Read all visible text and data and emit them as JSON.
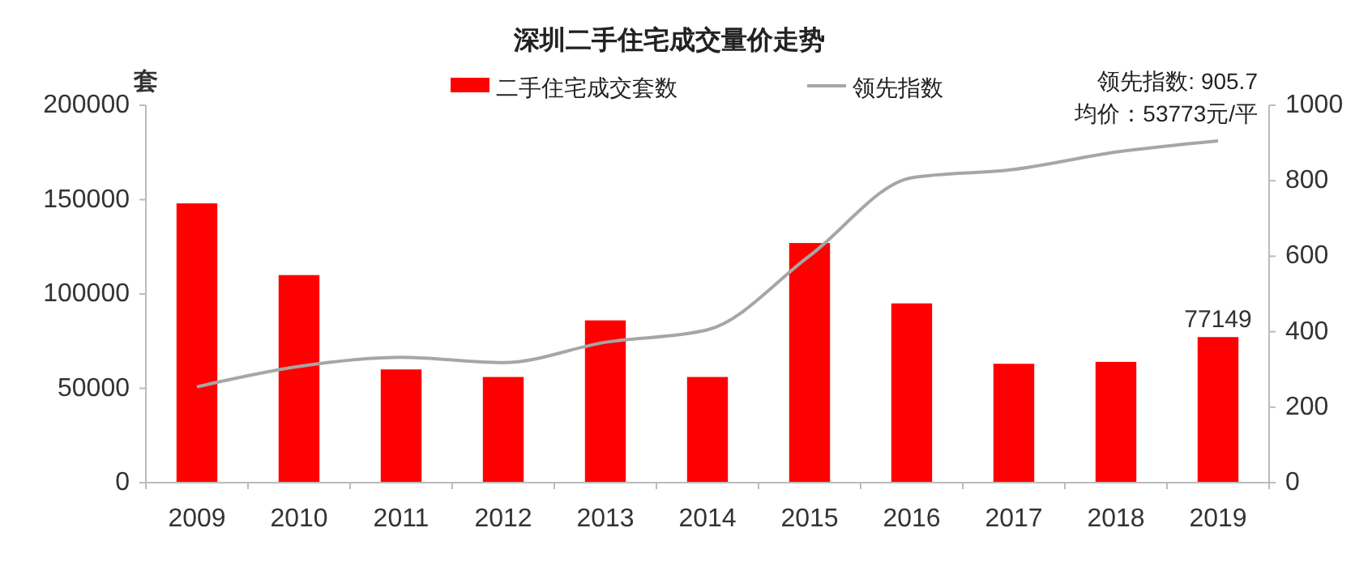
{
  "chart_data": {
    "type": "bar",
    "title": "深圳二手住宅成交量价走势",
    "ylabel": "套",
    "categories": [
      "2009",
      "2010",
      "2011",
      "2012",
      "2013",
      "2014",
      "2015",
      "2016",
      "2017",
      "2018",
      "2019"
    ],
    "series": [
      {
        "name": "二手住宅成交套数",
        "type": "bar",
        "color": "#ff0000",
        "values": [
          148000,
          110000,
          60000,
          56000,
          86000,
          56000,
          127000,
          95000,
          63000,
          64000,
          77149
        ],
        "value_labels": [
          null,
          null,
          null,
          null,
          null,
          null,
          null,
          null,
          null,
          null,
          "77149"
        ]
      },
      {
        "name": "领先指数",
        "type": "line",
        "axis": "y2",
        "color": "#a6a6a6",
        "values": [
          254,
          308,
          332,
          318,
          372,
          405,
          601,
          808,
          830,
          876,
          905.7
        ]
      }
    ],
    "ylim": [
      0,
      200000
    ],
    "yticks": [
      0,
      50000,
      100000,
      150000,
      200000
    ],
    "y2lim": [
      0,
      1000
    ],
    "y2ticks": [
      0,
      200,
      400,
      600,
      800,
      1000
    ],
    "annotations": [
      "领先指数: 905.7",
      "均价：53773元/平"
    ],
    "legend": "top",
    "grid": false,
    "marker": "none",
    "line_style": "solid"
  }
}
